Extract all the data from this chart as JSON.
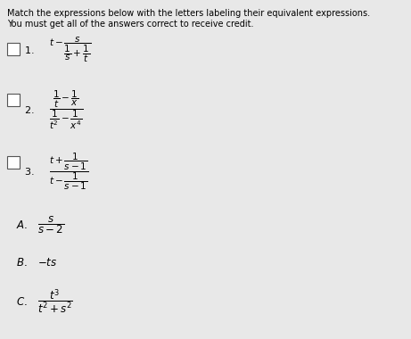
{
  "title_line1": "Match the expressions below with the letters labeling their equivalent expressions.",
  "title_line2": "You must get all of the answers correct to receive credit.",
  "bg_color": "#e8e8e8",
  "text_color": "#000000",
  "box_color": "#ffffff",
  "item1_expr": "t - \\dfrac{s}{\\dfrac{1}{s}+\\dfrac{1}{t}}",
  "item2_expr": "\\dfrac{\\dfrac{1}{t}-\\dfrac{1}{x}}{\\dfrac{1}{t^2}-\\dfrac{1}{x^4}}",
  "item3_expr": "\\dfrac{t+\\dfrac{1}{s-1}}{t-\\dfrac{1}{s-1}}",
  "ans_a": "\\dfrac{s}{s-2}",
  "ans_b": "-ts",
  "ans_c": "\\dfrac{t^3}{t^2+s^2}",
  "title_fontsize": 7.0,
  "expr_fontsize": 7.5,
  "ans_fontsize": 8.5,
  "num_fontsize": 8.0
}
